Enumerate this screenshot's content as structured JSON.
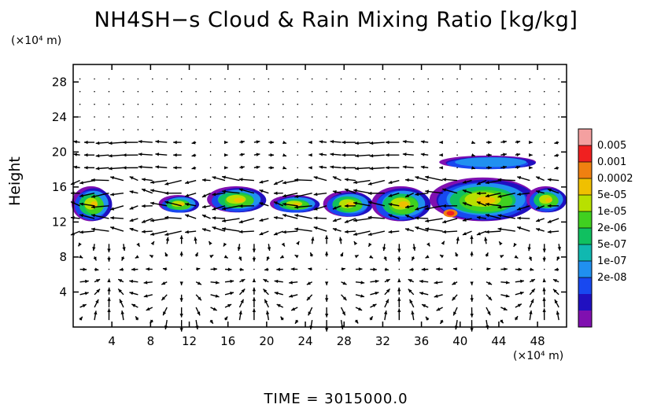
{
  "chart_data": {
    "type": "heatmap",
    "title": "NH4SH−s Cloud & Rain Mixing Ratio [kg/kg]",
    "ylabel": "Height",
    "yunit": "(×10⁴ m)",
    "xunit": "(×10⁴ m)",
    "xlim": [
      0,
      51
    ],
    "ylim": [
      0,
      30
    ],
    "xticks": [
      4,
      8,
      12,
      16,
      20,
      24,
      28,
      32,
      36,
      40,
      44,
      48
    ],
    "yticks": [
      4,
      8,
      12,
      16,
      20,
      24,
      28
    ],
    "colorbar": {
      "labels": [
        "0.005",
        "0.001",
        "0.0002",
        "5e-05",
        "1e-05",
        "2e-06",
        "5e-07",
        "1e-07",
        "2e-08"
      ],
      "colors": [
        "#f4a0a0",
        "#f02020",
        "#f08010",
        "#f0c000",
        "#b8e000",
        "#40d020",
        "#10c060",
        "#10b8b0",
        "#2090f0",
        "#1848f0",
        "#2010c0",
        "#8010b0"
      ]
    },
    "cloud_patches": [
      {
        "x": [
          0,
          4
        ],
        "y": [
          12,
          16
        ]
      },
      {
        "x": [
          9,
          13
        ],
        "y": [
          13,
          15
        ]
      },
      {
        "x": [
          14,
          20
        ],
        "y": [
          13,
          16
        ]
      },
      {
        "x": [
          20.5,
          25.5
        ],
        "y": [
          13,
          15
        ]
      },
      {
        "x": [
          26,
          31
        ],
        "y": [
          12.5,
          15.5
        ]
      },
      {
        "x": [
          31,
          37
        ],
        "y": [
          12,
          16
        ]
      },
      {
        "x": [
          37,
          48
        ],
        "y": [
          12,
          17
        ]
      },
      {
        "x": [
          38,
          48
        ],
        "y": [
          18,
          19.5
        ]
      },
      {
        "x": [
          47,
          51
        ],
        "y": [
          13,
          16
        ]
      }
    ],
    "wind_field": "velocity vectors overlaid on grid"
  },
  "footer": {
    "time_label": "TIME  =  3015000.0"
  }
}
